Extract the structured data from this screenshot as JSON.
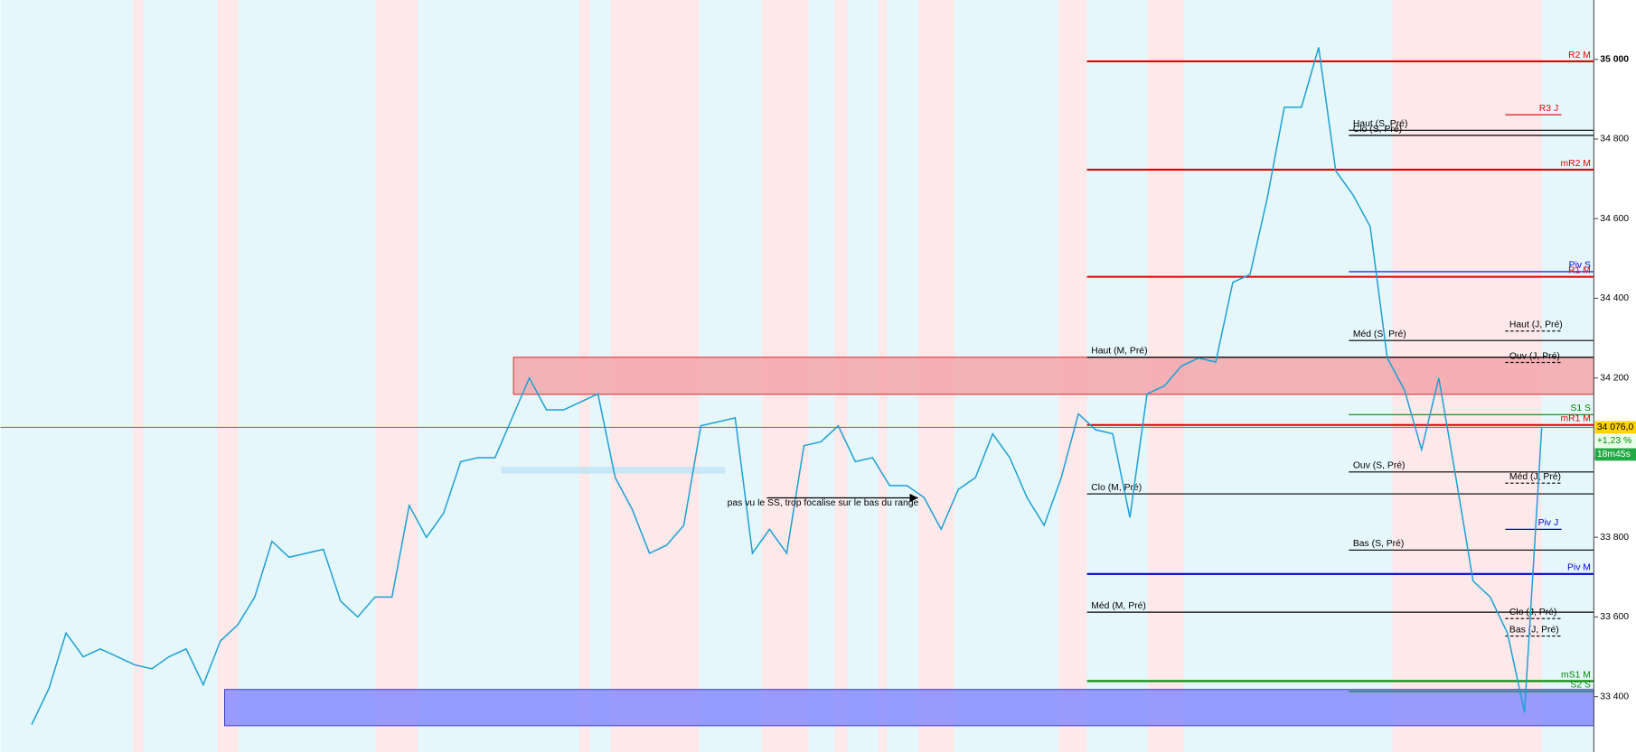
{
  "chart_data": {
    "type": "line",
    "ylim": [
      33261,
      35149
    ],
    "yticks": [
      {
        "value": 33400,
        "label": "33 400"
      },
      {
        "value": 33600,
        "label": "33 600"
      },
      {
        "value": 33800,
        "label": "33 800"
      },
      {
        "value": 34000,
        "label": "34 000"
      },
      {
        "value": 34200,
        "label": "34 200"
      },
      {
        "value": 34400,
        "label": "34 400"
      },
      {
        "value": 34600,
        "label": "34 600"
      },
      {
        "value": 34800,
        "label": "34 800"
      },
      {
        "value": 35000,
        "label": "35 000"
      }
    ],
    "series": [
      {
        "color": "#1ba1d4",
        "values": [
          33330,
          33420,
          33560,
          33500,
          33520,
          33500,
          33480,
          33470,
          33500,
          33520,
          33430,
          33540,
          33580,
          33650,
          33790,
          33750,
          33760,
          33770,
          33640,
          33600,
          33650,
          33650,
          33880,
          33800,
          33860,
          33990,
          34000,
          34000,
          34100,
          34200,
          34120,
          34120,
          34140,
          34160,
          33950,
          33870,
          33760,
          33780,
          33830,
          34080,
          34090,
          34100,
          33760,
          33820,
          33760,
          34030,
          34040,
          34080,
          33990,
          34000,
          33930,
          33930,
          33900,
          33820,
          33920,
          33950,
          34060,
          34000,
          33900,
          33830,
          33950,
          34110,
          34070,
          34060,
          33850,
          34160,
          34180,
          34230,
          34250,
          34240,
          34440,
          34460,
          34650,
          34880,
          34880,
          35030,
          34720,
          34660,
          34580,
          34250,
          34170,
          34020,
          34200,
          33950,
          33690,
          33650,
          33560,
          33360,
          34076
        ]
      }
    ],
    "levels": [
      {
        "name": "R2 M",
        "value": 34995,
        "color": "#e00000"
      },
      {
        "name": "R3 J",
        "value": 34861,
        "color": "#e00000"
      },
      {
        "name": "Haut (S, Pré)",
        "value": 34822,
        "color": "#000000"
      },
      {
        "name": "Clo (S, Pré)",
        "value": 34809,
        "color": "#000000"
      },
      {
        "name": "mR2 M",
        "value": 34723,
        "color": "#e00000"
      },
      {
        "name": "Piv S",
        "value": 34467,
        "color": "#0000dd"
      },
      {
        "name": "R1 M",
        "value": 34454,
        "color": "#e00000"
      },
      {
        "name": "Haut (J, Pré)",
        "value": 34318,
        "color": "#000000"
      },
      {
        "name": "Méd (S, Pré)",
        "value": 34294,
        "color": "#000000"
      },
      {
        "name": "Haut (M, Pré)",
        "value": 34252,
        "color": "#000000"
      },
      {
        "name": "Ouv (J, Pré)",
        "value": 34239,
        "color": "#000000"
      },
      {
        "name": "S1 S",
        "value": 34108,
        "color": "#008800"
      },
      {
        "name": "mR1 M",
        "value": 34082,
        "color": "#e00000"
      },
      {
        "name": "Ouv (S, Pré)",
        "value": 33964,
        "color": "#000000"
      },
      {
        "name": "Méd (J, Pré)",
        "value": 33936,
        "color": "#000000"
      },
      {
        "name": "Clo (M, Pré)",
        "value": 33909,
        "color": "#000000"
      },
      {
        "name": "Piv J",
        "value": 33820,
        "color": "#0000dd"
      },
      {
        "name": "Bas (S, Pré)",
        "value": 33768,
        "color": "#000000"
      },
      {
        "name": "Piv M",
        "value": 33708,
        "color": "#0000dd"
      },
      {
        "name": "Méd (M, Pré)",
        "value": 33612,
        "color": "#000000"
      },
      {
        "name": "Clo (J, Pré)",
        "value": 33596,
        "color": "#000000"
      },
      {
        "name": "Bas (J, Pré)",
        "value": 33552,
        "color": "#000000"
      },
      {
        "name": "mS1 M",
        "value": 33439,
        "color": "#008800"
      },
      {
        "name": "S2 S",
        "value": 33413,
        "color": "#008800"
      }
    ],
    "zones": [
      {
        "low": 34159,
        "high": 34252,
        "color": "#f4a0a8"
      },
      {
        "low": 33327,
        "high": 33418,
        "color": "#7f86ff"
      },
      {
        "low": 33960,
        "high": 33977,
        "color": "#bfe3f5"
      }
    ],
    "last_price": {
      "value": 34076,
      "label": "34 076,0"
    },
    "change": "+1,23 %",
    "countdown": "18m45s",
    "annotation": "pas vu le SS, trop focalise sur le bas du range"
  }
}
